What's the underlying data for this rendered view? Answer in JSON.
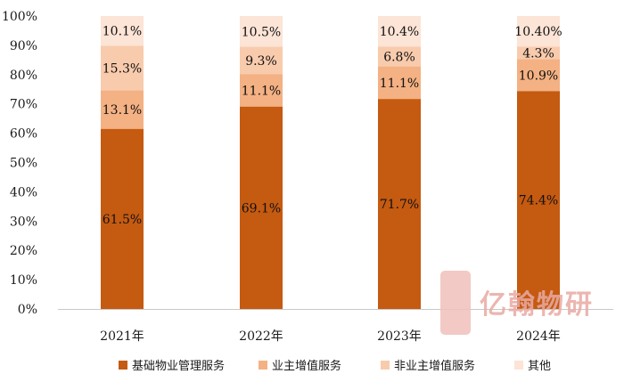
{
  "chart_data": {
    "type": "bar",
    "stacked": true,
    "categories": [
      "2021年",
      "2022年",
      "2023年",
      "2024年"
    ],
    "series": [
      {
        "name": "基础物业管理服务",
        "color": "#c55a11",
        "values": [
          61.5,
          69.1,
          71.7,
          74.4
        ],
        "labels": [
          "61.5%",
          "69.1%",
          "71.7%",
          "74.4%"
        ]
      },
      {
        "name": "业主增值服务",
        "color": "#f4b183",
        "values": [
          13.1,
          11.1,
          11.1,
          10.9
        ],
        "labels": [
          "13.1%",
          "11.1%",
          "11.1%",
          "10.9%"
        ]
      },
      {
        "name": "非业主增值服务",
        "color": "#f8cbad",
        "values": [
          15.3,
          9.3,
          6.8,
          4.3
        ],
        "labels": [
          "15.3%",
          "9.3%",
          "6.8%",
          "4.3%"
        ]
      },
      {
        "name": "其他",
        "color": "#fce4d6",
        "values": [
          10.1,
          10.5,
          10.4,
          10.4
        ],
        "labels": [
          "10.1%",
          "10.5%",
          "10.4%",
          "10.40%"
        ]
      }
    ],
    "y_ticks": [
      "0%",
      "10%",
      "20%",
      "30%",
      "40%",
      "50%",
      "60%",
      "70%",
      "80%",
      "90%",
      "100%"
    ],
    "ylim": [
      0,
      100
    ],
    "grid": false,
    "legend": "bottom",
    "title": "",
    "xlabel": "",
    "ylabel": ""
  },
  "watermark": {
    "text": "亿翰物研",
    "logo_text": "亿翰"
  }
}
